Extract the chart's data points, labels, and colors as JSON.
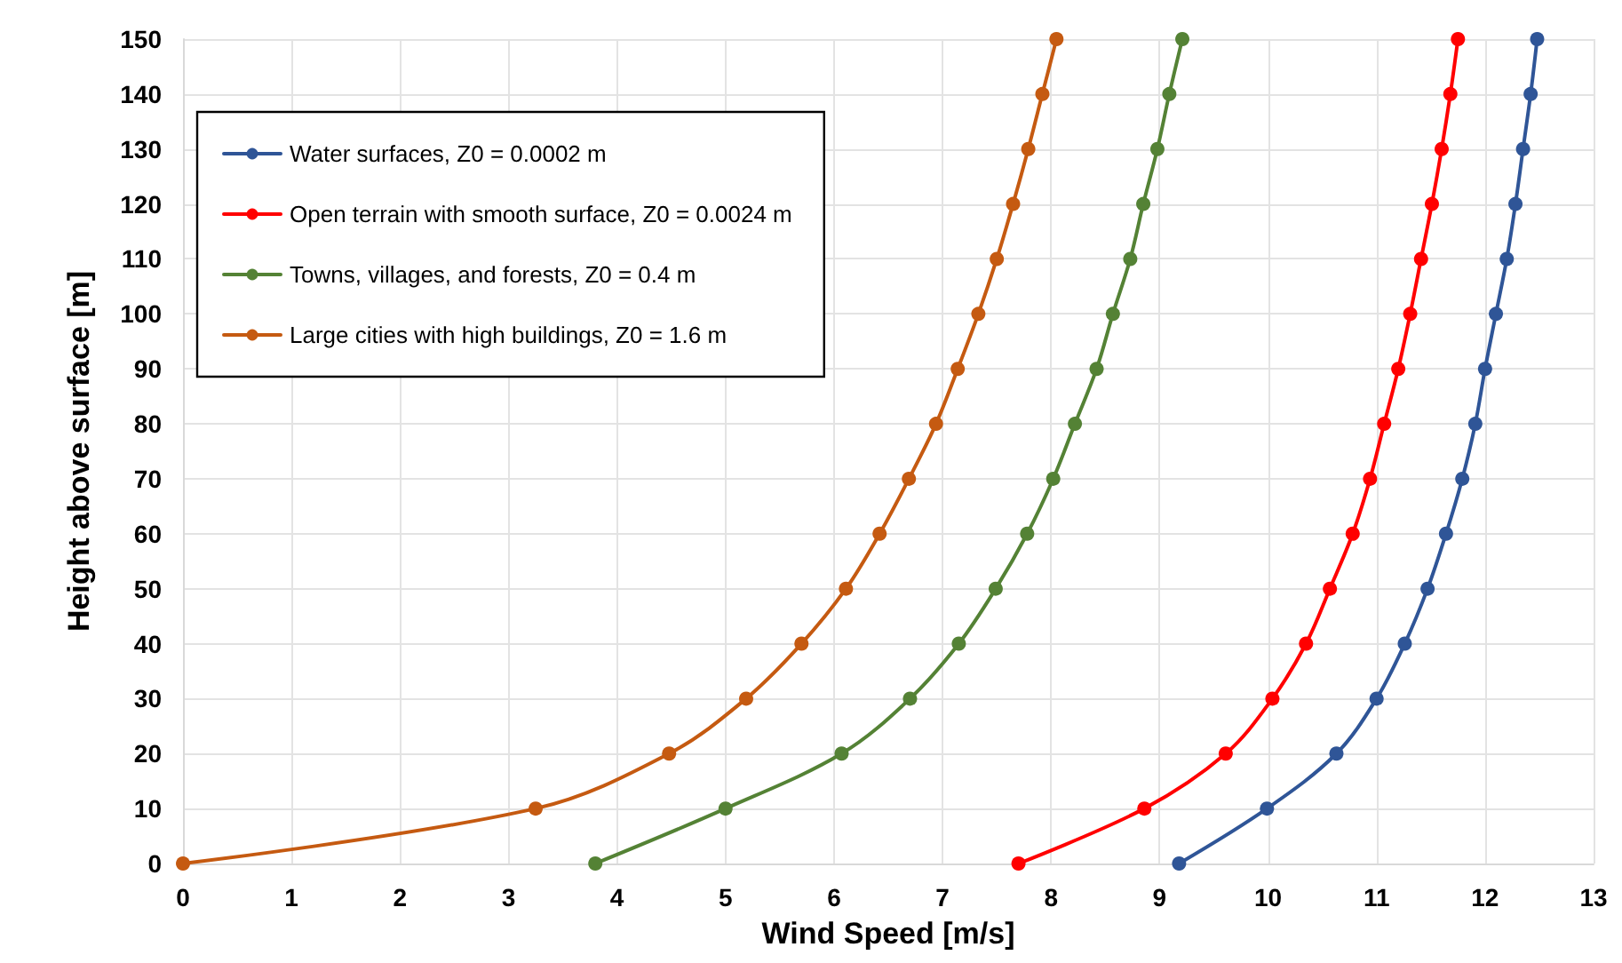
{
  "chart_data": {
    "type": "line",
    "xlabel": "Wind Speed [m/s]",
    "ylabel": "Height above surface [m]",
    "xlim": [
      0,
      13
    ],
    "xticks": [
      0,
      1,
      2,
      3,
      4,
      5,
      6,
      7,
      8,
      9,
      10,
      11,
      12,
      13
    ],
    "ylim": [
      0,
      150
    ],
    "yticks": [
      0,
      10,
      20,
      30,
      40,
      50,
      60,
      70,
      80,
      90,
      100,
      110,
      120,
      130,
      140,
      150
    ],
    "grid": true,
    "legend": "top left",
    "marker": "circle",
    "line_style": "solid",
    "series": [
      {
        "name": "Water surfaces, Z0 = 0.0002 m",
        "color": "#2f5597",
        "x": [
          9.18,
          9.99,
          10.63,
          11.0,
          11.26,
          11.47,
          11.64,
          11.79,
          11.91,
          12.0,
          12.1,
          12.2,
          12.28,
          12.35,
          12.42,
          12.48
        ],
        "values": [
          0,
          10,
          20,
          30,
          40,
          50,
          60,
          70,
          80,
          90,
          100,
          110,
          120,
          130,
          140,
          150
        ]
      },
      {
        "name": "Open terrain with smooth surface, Z0 = 0.0024 m",
        "color": "#ff0000",
        "x": [
          7.7,
          8.86,
          9.61,
          10.04,
          10.35,
          10.57,
          10.78,
          10.94,
          11.07,
          11.2,
          11.31,
          11.41,
          11.51,
          11.6,
          11.68,
          11.75
        ],
        "values": [
          0,
          10,
          20,
          30,
          40,
          50,
          60,
          70,
          80,
          90,
          100,
          110,
          120,
          130,
          140,
          150
        ]
      },
      {
        "name": "Towns, villages, and forests, Z0 = 0.4 m",
        "color": "#548235",
        "x": [
          3.8,
          5.0,
          6.07,
          6.7,
          7.15,
          7.49,
          7.78,
          8.02,
          8.22,
          8.42,
          8.57,
          8.73,
          8.85,
          8.98,
          9.09,
          9.21
        ],
        "values": [
          0,
          10,
          20,
          30,
          40,
          50,
          60,
          70,
          80,
          90,
          100,
          110,
          120,
          130,
          140,
          150
        ]
      },
      {
        "name": "Large cities with high buildings, Z0 = 1.6 m",
        "color": "#c55a11",
        "x": [
          0,
          3.25,
          4.48,
          5.19,
          5.7,
          6.11,
          6.42,
          6.69,
          6.94,
          7.14,
          7.33,
          7.5,
          7.65,
          7.79,
          7.92,
          8.05
        ],
        "values": [
          0,
          10,
          20,
          30,
          40,
          50,
          60,
          70,
          80,
          90,
          100,
          110,
          120,
          130,
          140,
          150
        ]
      }
    ]
  }
}
